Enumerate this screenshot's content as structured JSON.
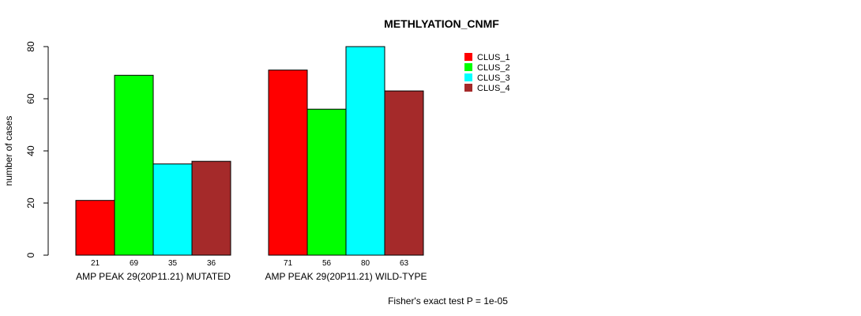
{
  "chart_data": {
    "type": "bar",
    "title": "METHLYATION_CNMF",
    "ylabel": "number of cases",
    "xlabel": "",
    "ylim": [
      0,
      80
    ],
    "yticks": [
      0,
      20,
      40,
      60,
      80
    ],
    "groups": [
      "AMP PEAK 29(20P11.21) MUTATED",
      "AMP PEAK 29(20P11.21) WILD-TYPE"
    ],
    "series": [
      {
        "name": "CLUS_1",
        "color": "#ff0000",
        "values": [
          21,
          71
        ]
      },
      {
        "name": "CLUS_2",
        "color": "#00ff00",
        "values": [
          69,
          56
        ]
      },
      {
        "name": "CLUS_3",
        "color": "#00ffff",
        "values": [
          35,
          80
        ]
      },
      {
        "name": "CLUS_4",
        "color": "#a52a2a",
        "values": [
          36,
          63
        ]
      }
    ],
    "legend_position": "top-right",
    "grid": false,
    "footer": "Fisher's exact test P = 1e-05"
  }
}
